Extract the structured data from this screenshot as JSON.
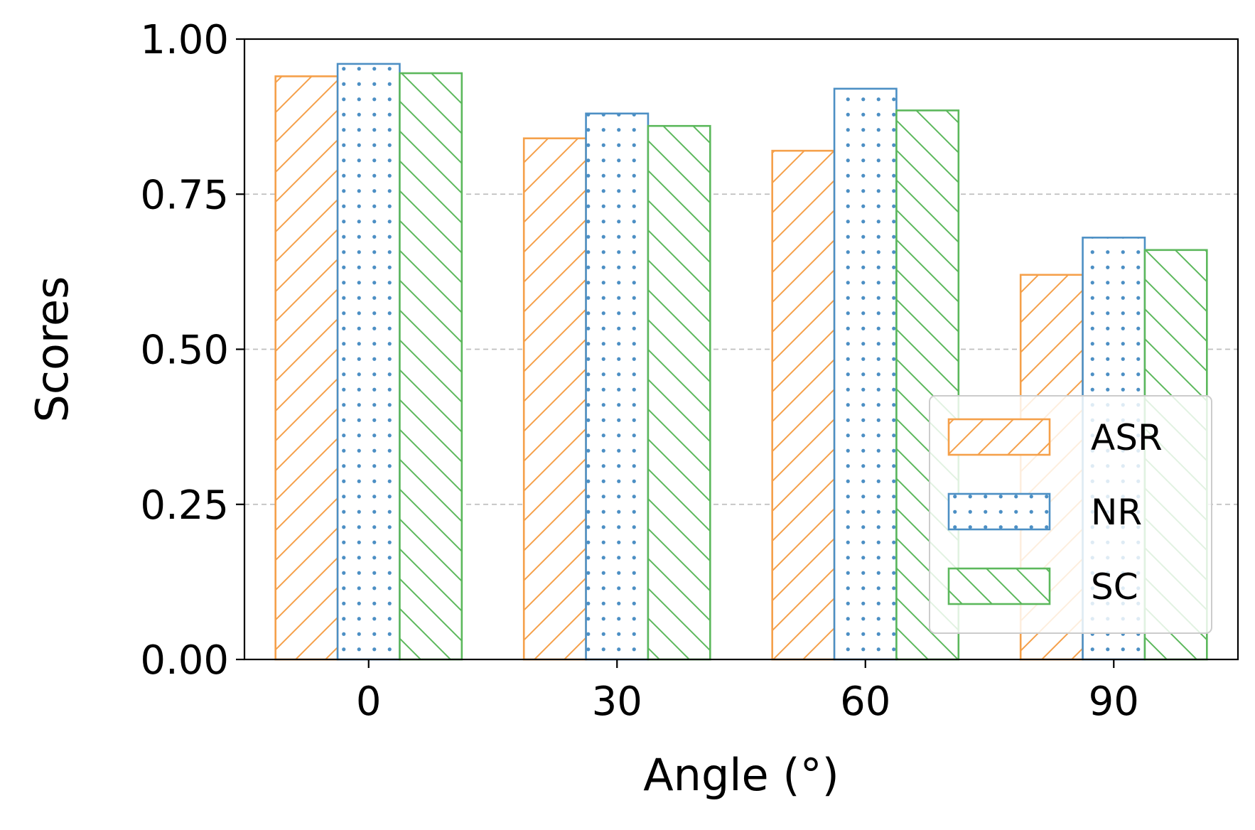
{
  "chart_data": {
    "type": "bar",
    "title": "",
    "xlabel": "Angle (°)",
    "ylabel": "Scores",
    "categories": [
      "0",
      "30",
      "60",
      "90"
    ],
    "series": [
      {
        "name": "ASR",
        "values": [
          0.94,
          0.84,
          0.82,
          0.62
        ],
        "color": "#f5a04a",
        "hatch": "forward-diagonal"
      },
      {
        "name": "NR",
        "values": [
          0.96,
          0.88,
          0.92,
          0.68
        ],
        "color": "#4c8fc4",
        "hatch": "dots"
      },
      {
        "name": "SC",
        "values": [
          0.945,
          0.86,
          0.885,
          0.66
        ],
        "color": "#5cb85c",
        "hatch": "back-diagonal"
      }
    ],
    "ylim": [
      0,
      1.0
    ],
    "yticks": [
      "0.00",
      "0.25",
      "0.50",
      "0.75",
      "1.00"
    ],
    "grid": "horizontal-dashed",
    "legend_position": "lower-right"
  }
}
